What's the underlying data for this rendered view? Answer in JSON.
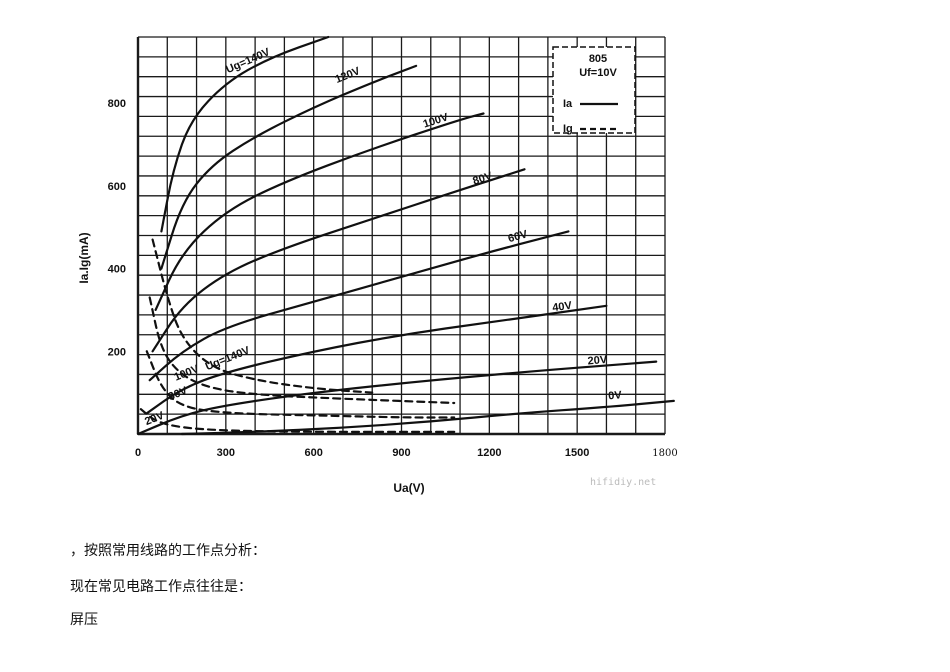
{
  "chart_data": {
    "type": "line",
    "title": "",
    "xlabel": "Ua(V)",
    "ylabel": "Ia.Ig(mA)",
    "xlim": [
      0,
      1800
    ],
    "ylim": [
      0,
      960
    ],
    "x_ticks": [
      "0",
      "300",
      "600",
      "900",
      "1200",
      "1500",
      "1800"
    ],
    "y_ticks": [
      "200",
      "400",
      "600",
      "800"
    ],
    "grid": true,
    "legend_position": "top-right",
    "legend": {
      "title_line1": "805",
      "title_line2": "Uf=10V",
      "entries": [
        {
          "label": "Ia",
          "style": "solid"
        },
        {
          "label": "Ig",
          "style": "dashed"
        }
      ]
    },
    "watermark": "hifidiy.net",
    "anode_series": [
      {
        "label": "Ug=140V",
        "style": "solid",
        "label_at": [
          380,
          895
        ],
        "points": [
          [
            80,
            490
          ],
          [
            120,
            640
          ],
          [
            180,
            760
          ],
          [
            300,
            850
          ],
          [
            450,
            910
          ],
          [
            650,
            960
          ]
        ]
      },
      {
        "label": "120V",
        "style": "solid",
        "label_at": [
          720,
          860
        ],
        "points": [
          [
            80,
            400
          ],
          [
            150,
            560
          ],
          [
            250,
            650
          ],
          [
            400,
            720
          ],
          [
            600,
            790
          ],
          [
            800,
            850
          ],
          [
            950,
            890
          ]
        ]
      },
      {
        "label": "100V",
        "style": "solid",
        "label_at": [
          1020,
          750
        ],
        "points": [
          [
            60,
            300
          ],
          [
            150,
            440
          ],
          [
            300,
            540
          ],
          [
            500,
            610
          ],
          [
            800,
            690
          ],
          [
            1100,
            760
          ],
          [
            1180,
            775
          ]
        ]
      },
      {
        "label": "80V",
        "style": "solid",
        "label_at": [
          1180,
          610
        ],
        "points": [
          [
            50,
            200
          ],
          [
            150,
            310
          ],
          [
            300,
            390
          ],
          [
            500,
            450
          ],
          [
            800,
            520
          ],
          [
            1100,
            590
          ],
          [
            1320,
            640
          ]
        ]
      },
      {
        "label": "60V",
        "style": "solid",
        "label_at": [
          1300,
          470
        ],
        "points": [
          [
            40,
            130
          ],
          [
            150,
            200
          ],
          [
            300,
            260
          ],
          [
            600,
            320
          ],
          [
            900,
            380
          ],
          [
            1200,
            440
          ],
          [
            1470,
            490
          ]
        ]
      },
      {
        "label": "40V",
        "style": "solid",
        "label_at": [
          1450,
          300
        ],
        "points": [
          [
            30,
            50
          ],
          [
            150,
            110
          ],
          [
            300,
            150
          ],
          [
            600,
            200
          ],
          [
            900,
            240
          ],
          [
            1200,
            270
          ],
          [
            1600,
            310
          ]
        ]
      },
      {
        "label": "20V",
        "style": "solid",
        "label_at": [
          1570,
          170
        ],
        "points": [
          [
            0,
            0
          ],
          [
            150,
            45
          ],
          [
            300,
            70
          ],
          [
            600,
            100
          ],
          [
            1000,
            130
          ],
          [
            1400,
            155
          ],
          [
            1770,
            175
          ]
        ]
      },
      {
        "label": "0V",
        "style": "solid",
        "label_at": [
          1630,
          85
        ],
        "points": [
          [
            150,
            0
          ],
          [
            400,
            5
          ],
          [
            700,
            15
          ],
          [
            1000,
            30
          ],
          [
            1300,
            50
          ],
          [
            1600,
            65
          ],
          [
            1830,
            80
          ]
        ]
      }
    ],
    "grid_series": [
      {
        "label": "Ug=140V",
        "style": "dashed",
        "label_at": [
          310,
          175
        ],
        "points": [
          [
            50,
            470
          ],
          [
            100,
            330
          ],
          [
            150,
            230
          ],
          [
            250,
            160
          ],
          [
            400,
            130
          ],
          [
            600,
            110
          ],
          [
            800,
            100
          ]
        ]
      },
      {
        "label": "100V",
        "style": "dashed",
        "label_at": [
          170,
          140
        ],
        "points": [
          [
            40,
            330
          ],
          [
            80,
            200
          ],
          [
            150,
            140
          ],
          [
            250,
            110
          ],
          [
            400,
            95
          ],
          [
            700,
            85
          ],
          [
            1080,
            75
          ]
        ]
      },
      {
        "label": "80V",
        "style": "dashed",
        "label_at": [
          140,
          90
        ],
        "points": [
          [
            30,
            200
          ],
          [
            80,
            110
          ],
          [
            150,
            65
          ],
          [
            300,
            50
          ],
          [
            600,
            45
          ],
          [
            900,
            40
          ],
          [
            1080,
            40
          ]
        ]
      },
      {
        "label": "20V",
        "style": "dashed",
        "label_at": [
          60,
          30
        ],
        "points": [
          [
            10,
            60
          ],
          [
            60,
            30
          ],
          [
            150,
            15
          ],
          [
            300,
            8
          ],
          [
            600,
            5
          ],
          [
            1080,
            5
          ]
        ]
      }
    ]
  },
  "paragraphs": {
    "p1": "，按照常用线路的工作点分析：",
    "p2": "现在常见电路工作点往往是：",
    "p3": "屏压"
  }
}
